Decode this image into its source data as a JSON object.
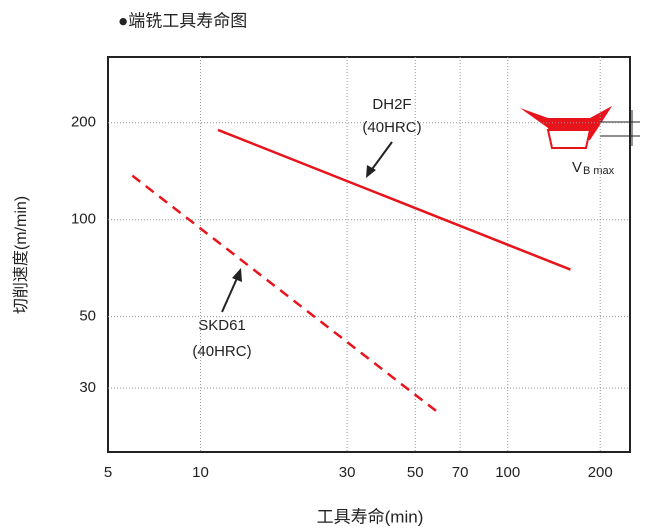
{
  "chart_data": {
    "type": "line",
    "title": "●端铣工具寿命图",
    "x_label": "工具寿命(min)",
    "y_label": "切削速度(m/min)",
    "log_x": true,
    "log_y": true,
    "grid": true,
    "xlim": [
      5,
      250
    ],
    "ylim": [
      19,
      320
    ],
    "xticks": [
      5,
      10,
      30,
      50,
      70,
      100,
      200
    ],
    "yticks": [
      30,
      50,
      100,
      200
    ],
    "series": [
      {
        "name": "DH2F",
        "color": "#e8141b",
        "dash": false,
        "x": [
          11.4,
          160
        ],
        "values": [
          190,
          70
        ]
      },
      {
        "name": "SKD61",
        "color": "#e8141b",
        "dash": true,
        "x": [
          6,
          60
        ],
        "values": [
          137,
          25
        ]
      }
    ],
    "annotations": [
      "DH2F",
      "(40HRC)",
      "SKD61",
      "(40HRC)"
    ],
    "inset_label": "V",
    "inset_sub": "B max"
  }
}
